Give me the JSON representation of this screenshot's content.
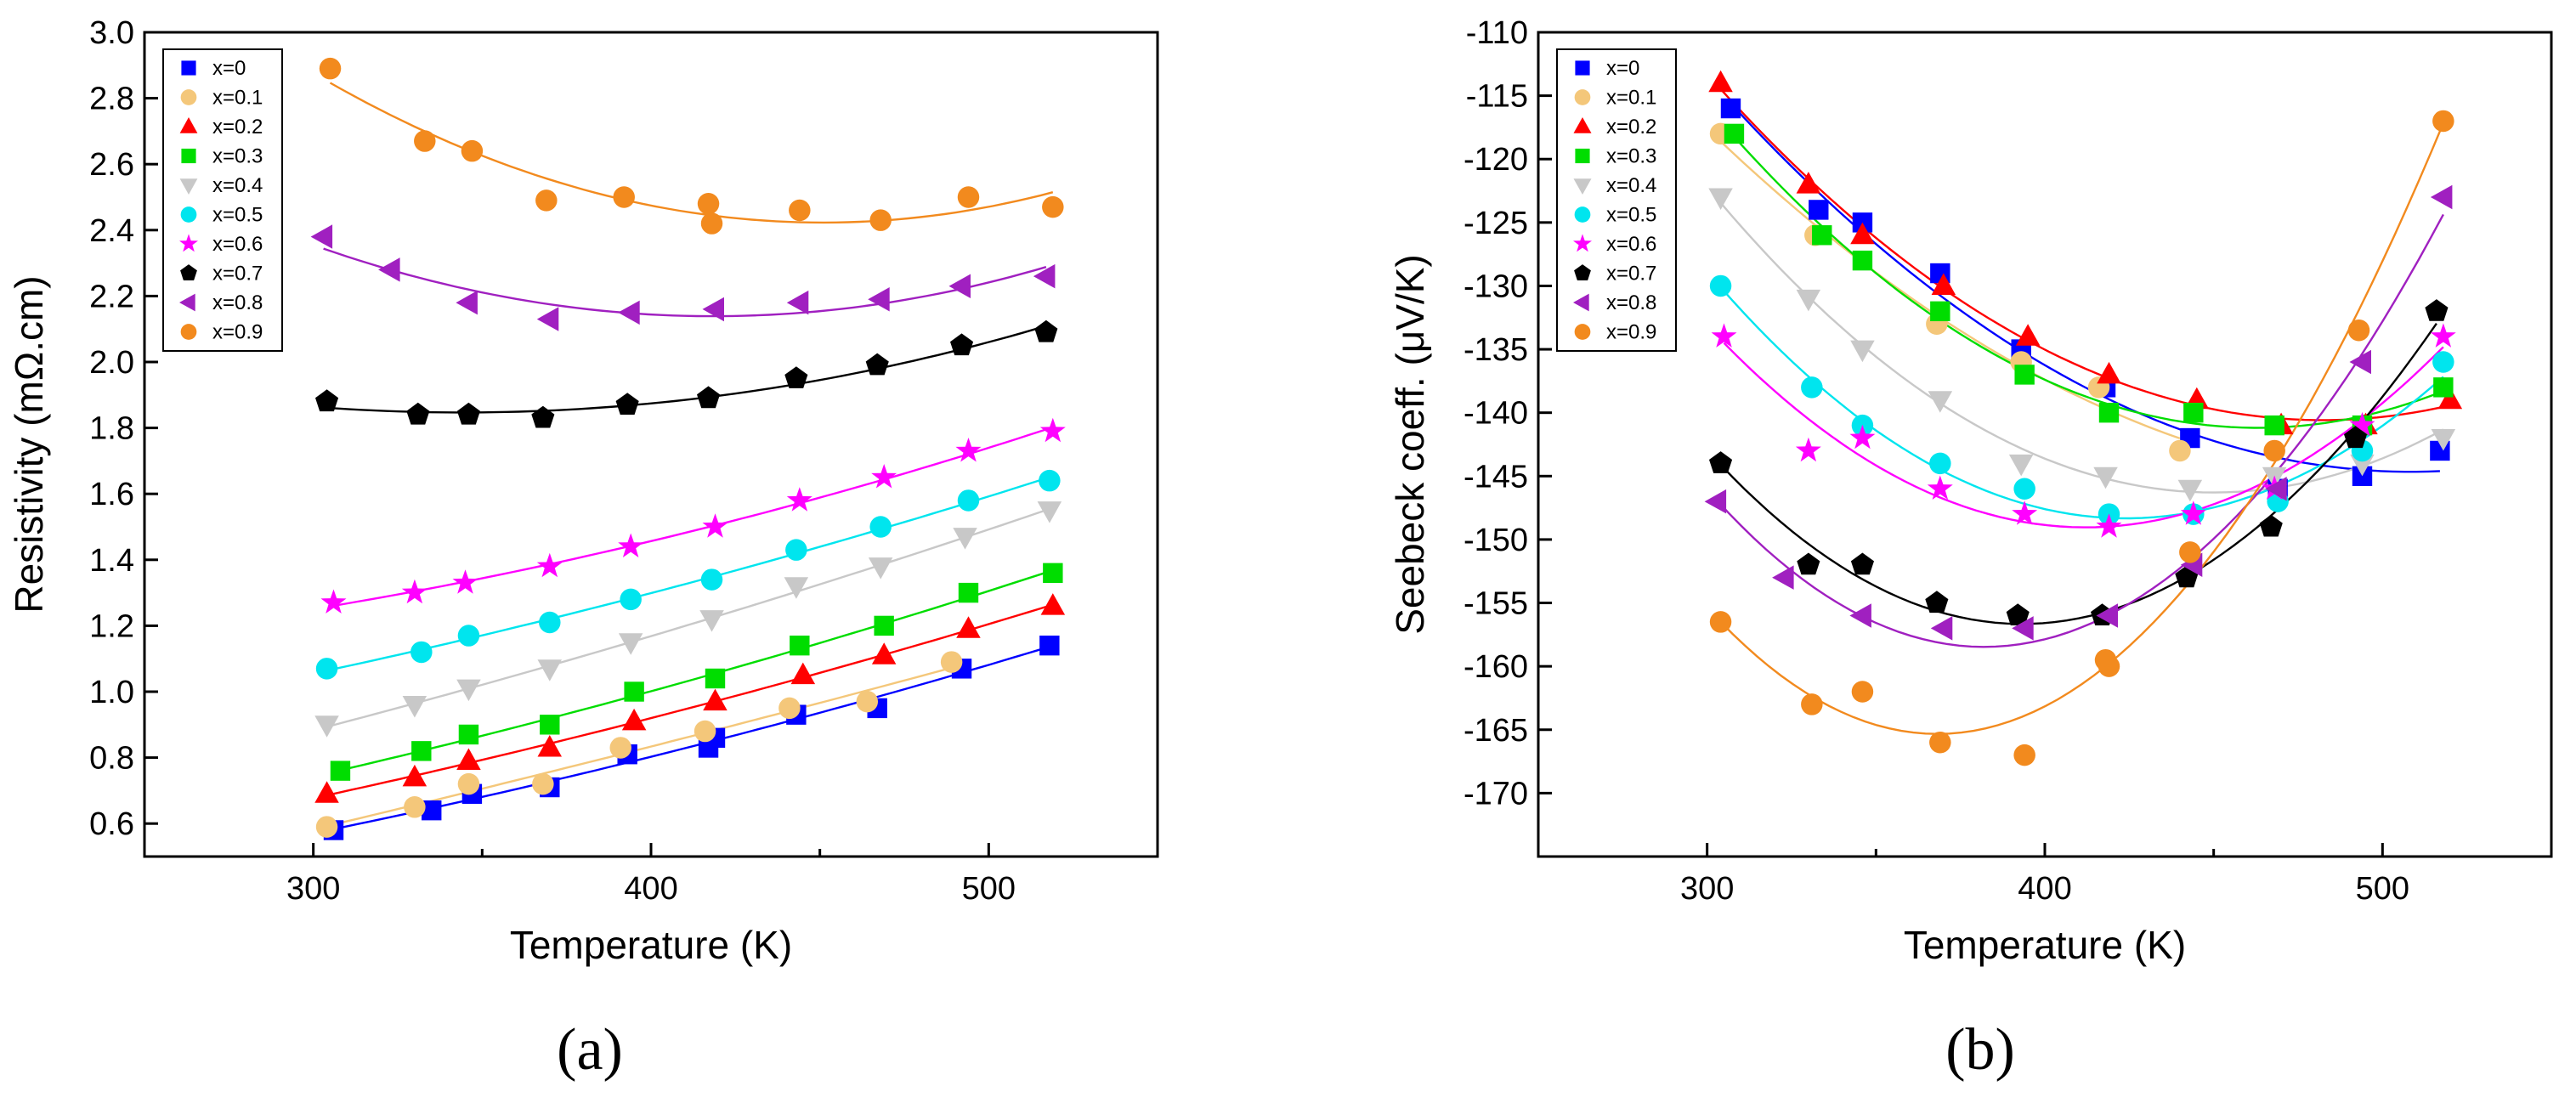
{
  "figure": {
    "label_a": "(a)",
    "label_b": "(b)"
  },
  "chart_data": [
    {
      "type": "scatter",
      "panel": "(a)",
      "title": "",
      "xlabel": "Temperature (K)",
      "ylabel": "Resistivity (mΩ.cm)",
      "xlim": [
        250,
        550
      ],
      "ylim": [
        0.5,
        3.0
      ],
      "xticks": [
        300,
        400,
        500
      ],
      "yticks": [
        0.6,
        0.8,
        1.0,
        1.2,
        1.4,
        1.6,
        1.8,
        2.0,
        2.2,
        2.4,
        2.6,
        2.8,
        3.0
      ],
      "ytick_labels": [
        "0.6",
        "0.8",
        "1.0",
        "1.2",
        "1.4",
        "1.6",
        "1.8",
        "2.0",
        "2.2",
        "2.4",
        "2.6",
        "2.8",
        "3.0"
      ],
      "legend_position": "top-left",
      "series": [
        {
          "name": "x=0",
          "color": "#0000ff",
          "marker": "square",
          "x": [
            306,
            335,
            347,
            370,
            393,
            417,
            419,
            443,
            467,
            492,
            518
          ],
          "y": [
            0.58,
            0.64,
            0.69,
            0.71,
            0.81,
            0.83,
            0.86,
            0.93,
            0.95,
            1.07,
            1.14
          ]
        },
        {
          "name": "x=0.1",
          "color": "#f4c77a",
          "marker": "circle",
          "x": [
            304,
            330,
            346,
            368,
            391,
            416,
            441,
            464,
            489
          ],
          "y": [
            0.59,
            0.65,
            0.72,
            0.72,
            0.83,
            0.88,
            0.95,
            0.97,
            1.09
          ]
        },
        {
          "name": "x=0.2",
          "color": "#ff0000",
          "marker": "triangle-up",
          "x": [
            304,
            330,
            346,
            370,
            395,
            419,
            445,
            469,
            494,
            519
          ],
          "y": [
            0.69,
            0.74,
            0.79,
            0.83,
            0.91,
            0.97,
            1.05,
            1.11,
            1.19,
            1.26
          ]
        },
        {
          "name": "x=0.3",
          "color": "#00dd00",
          "marker": "square",
          "x": [
            308,
            332,
            346,
            370,
            395,
            419,
            444,
            469,
            494,
            519
          ],
          "y": [
            0.76,
            0.82,
            0.87,
            0.9,
            1.0,
            1.04,
            1.14,
            1.2,
            1.3,
            1.36
          ]
        },
        {
          "name": "x=0.4",
          "color": "#c8c8c8",
          "marker": "triangle-down",
          "x": [
            304,
            330,
            346,
            370,
            394,
            418,
            443,
            468,
            493,
            518
          ],
          "y": [
            0.9,
            0.96,
            1.01,
            1.07,
            1.15,
            1.22,
            1.32,
            1.38,
            1.47,
            1.55
          ]
        },
        {
          "name": "x=0.5",
          "color": "#00e5ee",
          "marker": "circle",
          "x": [
            304,
            332,
            346,
            370,
            394,
            418,
            443,
            468,
            494,
            518
          ],
          "y": [
            1.07,
            1.12,
            1.17,
            1.21,
            1.28,
            1.34,
            1.43,
            1.5,
            1.58,
            1.64
          ]
        },
        {
          "name": "x=0.6",
          "color": "#ff00ff",
          "marker": "star",
          "x": [
            306,
            330,
            345,
            370,
            394,
            419,
            444,
            469,
            494,
            519
          ],
          "y": [
            1.27,
            1.3,
            1.33,
            1.38,
            1.44,
            1.5,
            1.58,
            1.65,
            1.73,
            1.79
          ]
        },
        {
          "name": "x=0.7",
          "color": "#000000",
          "marker": "pentagon",
          "x": [
            304,
            331,
            346,
            368,
            393,
            417,
            443,
            467,
            492,
            517
          ],
          "y": [
            1.88,
            1.84,
            1.84,
            1.83,
            1.87,
            1.89,
            1.95,
            1.99,
            2.05,
            2.09
          ]
        },
        {
          "name": "x=0.8",
          "color": "#a020c0",
          "marker": "triangle-left",
          "x": [
            303,
            323,
            346,
            370,
            394,
            419,
            444,
            468,
            492,
            517
          ],
          "y": [
            2.38,
            2.28,
            2.18,
            2.13,
            2.15,
            2.16,
            2.18,
            2.19,
            2.23,
            2.26
          ]
        },
        {
          "name": "x=0.9",
          "color": "#f28a1e",
          "marker": "circle",
          "x": [
            305,
            333,
            347,
            369,
            392,
            417,
            418,
            444,
            468,
            494,
            519
          ],
          "y": [
            2.89,
            2.67,
            2.64,
            2.49,
            2.5,
            2.48,
            2.42,
            2.46,
            2.43,
            2.5,
            2.47
          ]
        }
      ]
    },
    {
      "type": "scatter",
      "panel": "(b)",
      "title": "",
      "xlabel": "Temperature (K)",
      "ylabel": "Seebeck coeff. (μV/K)",
      "xlim": [
        250,
        550
      ],
      "ylim": [
        -175,
        -110
      ],
      "xticks": [
        300,
        400,
        500
      ],
      "yticks": [
        -110,
        -115,
        -120,
        -125,
        -130,
        -135,
        -140,
        -145,
        -150,
        -155,
        -160,
        -165,
        -170
      ],
      "ytick_labels": [
        "-110",
        "-115",
        "-120",
        "-125",
        "-130",
        "-135",
        "-140",
        "-145",
        "-150",
        "-155",
        "-160",
        "-165",
        "-170"
      ],
      "legend_position": "top-left",
      "series": [
        {
          "name": "x=0",
          "color": "#0000ff",
          "marker": "square",
          "x": [
            307,
            333,
            346,
            369,
            393,
            418,
            443,
            469,
            494,
            517
          ],
          "y": [
            -116,
            -124,
            -125,
            -129,
            -135,
            -138,
            -142,
            -146,
            -145,
            -143
          ]
        },
        {
          "name": "x=0.1",
          "color": "#f4c77a",
          "marker": "circle",
          "x": [
            304,
            332,
            368,
            393,
            416,
            440
          ],
          "y": [
            -118,
            -126,
            -133,
            -136,
            -138,
            -143
          ]
        },
        {
          "name": "x=0.2",
          "color": "#ff0000",
          "marker": "triangle-up",
          "x": [
            304,
            330,
            346,
            370,
            395,
            419,
            445,
            470,
            495,
            520
          ],
          "y": [
            -114,
            -122,
            -126,
            -130,
            -134,
            -137,
            -139,
            -141,
            -141,
            -139
          ]
        },
        {
          "name": "x=0.3",
          "color": "#00dd00",
          "marker": "square",
          "x": [
            308,
            334,
            346,
            369,
            394,
            419,
            444,
            468,
            494,
            518
          ],
          "y": [
            -118,
            -126,
            -128,
            -132,
            -137,
            -140,
            -140,
            -141,
            -141,
            -138
          ]
        },
        {
          "name": "x=0.4",
          "color": "#c8c8c8",
          "marker": "triangle-down",
          "x": [
            304,
            330,
            346,
            369,
            393,
            418,
            443,
            468,
            494,
            518
          ],
          "y": [
            -123,
            -131,
            -135,
            -139,
            -144,
            -145,
            -146,
            -145,
            -144,
            -142
          ]
        },
        {
          "name": "x=0.5",
          "color": "#00e5ee",
          "marker": "circle",
          "x": [
            304,
            331,
            346,
            369,
            394,
            419,
            444,
            469,
            494,
            518
          ],
          "y": [
            -130,
            -138,
            -141,
            -144,
            -146,
            -148,
            -148,
            -147,
            -143,
            -136
          ]
        },
        {
          "name": "x=0.6",
          "color": "#ff00ff",
          "marker": "star",
          "x": [
            305,
            330,
            346,
            369,
            394,
            419,
            444,
            468,
            494,
            518
          ],
          "y": [
            -134,
            -143,
            -142,
            -146,
            -148,
            -149,
            -148,
            -146,
            -141,
            -134
          ]
        },
        {
          "name": "x=0.7",
          "color": "#000000",
          "marker": "pentagon",
          "x": [
            304,
            330,
            346,
            368,
            392,
            417,
            442,
            467,
            492,
            516
          ],
          "y": [
            -144,
            -152,
            -152,
            -155,
            -156,
            -156,
            -153,
            -149,
            -142,
            -132
          ]
        },
        {
          "name": "x=0.8",
          "color": "#a020c0",
          "marker": "triangle-left",
          "x": [
            303,
            323,
            346,
            370,
            394,
            419,
            444,
            469,
            494,
            518
          ],
          "y": [
            -147,
            -153,
            -156,
            -157,
            -157,
            -156,
            -152,
            -146,
            -136,
            -123
          ]
        },
        {
          "name": "x=0.9",
          "color": "#f28a1e",
          "marker": "circle",
          "x": [
            304,
            331,
            346,
            369,
            394,
            418,
            419,
            443,
            468,
            493,
            518
          ],
          "y": [
            -156.5,
            -163,
            -162,
            -166,
            -167,
            -159.5,
            -160,
            -151,
            -143,
            -133.5,
            -117
          ]
        }
      ]
    }
  ]
}
